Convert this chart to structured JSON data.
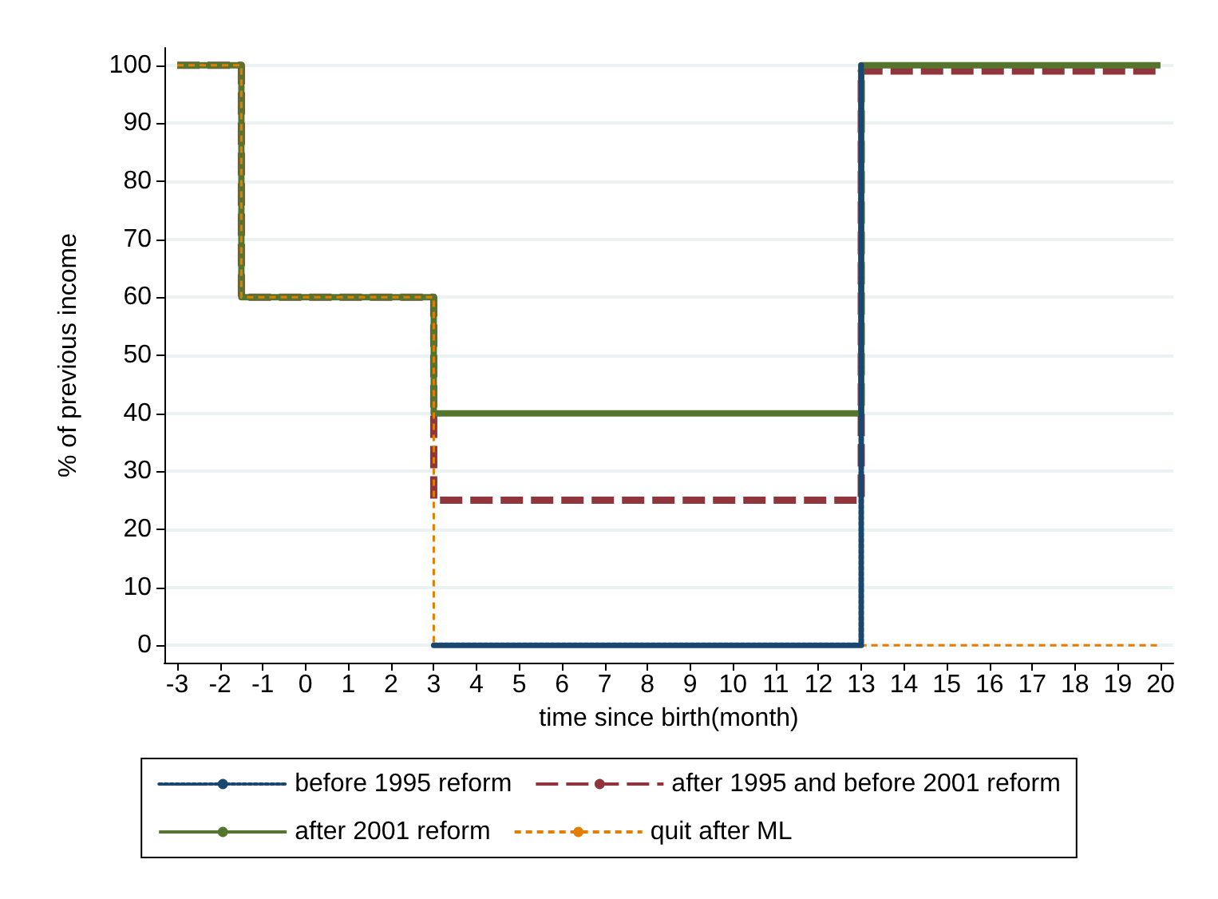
{
  "chart_data": {
    "type": "step",
    "xlabel": "time since birth(month)",
    "ylabel": "% of previous income",
    "x": [
      -3,
      -1.5,
      3,
      13,
      20
    ],
    "series": [
      {
        "name": "before 1995 reform",
        "color": "#1a476f",
        "line_style": "dotted",
        "x": [
          3,
          13
        ],
        "values": [
          0,
          100
        ]
      },
      {
        "name": "after 1995 and before 2001 reform",
        "color": "#90353b",
        "line_style": "dashed",
        "values": [
          100,
          60,
          25,
          99,
          99
        ]
      },
      {
        "name": "after 2001 reform",
        "color": "#55752f",
        "line_style": "solid",
        "values": [
          100,
          60,
          40,
          100,
          100
        ]
      },
      {
        "name": "quit after ML",
        "color": "#e37e00",
        "line_style": "dashed",
        "values": [
          100,
          60,
          0,
          0,
          0
        ]
      }
    ],
    "xlim": [
      -3.3,
      20.3
    ],
    "xticks": [
      -3,
      -2,
      -1,
      0,
      1,
      2,
      3,
      4,
      5,
      6,
      7,
      8,
      9,
      10,
      11,
      12,
      13,
      14,
      15,
      16,
      17,
      18,
      19,
      20
    ],
    "ylim": [
      -3,
      103
    ],
    "yticks": [
      0,
      10,
      20,
      30,
      40,
      50,
      60,
      70,
      80,
      90,
      100
    ],
    "grid": "y",
    "legend": "bottom"
  }
}
